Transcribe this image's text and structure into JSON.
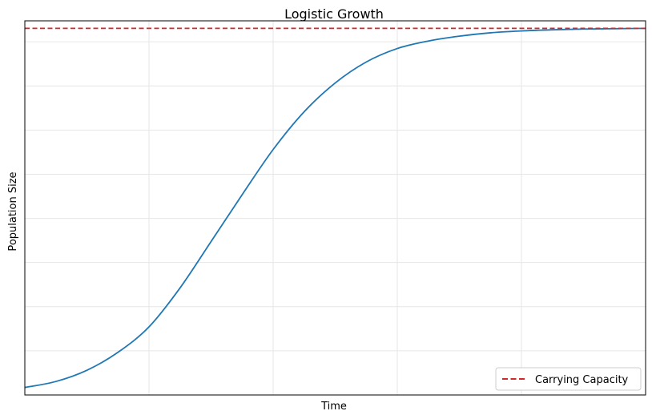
{
  "chart_data": {
    "type": "line",
    "title": "Logistic Growth",
    "xlabel": "Time",
    "ylabel": "Population Size",
    "xlim": [
      0,
      10
    ],
    "ylim": [
      0,
      1.0
    ],
    "grid": true,
    "x_tick_labels_shown": false,
    "y_tick_labels_shown": false,
    "legend_placement": "lower-right",
    "series": [
      {
        "color": "#1f77b4",
        "style": "solid",
        "x": [
          0,
          0.5,
          1,
          1.5,
          2,
          2.5,
          3,
          3.5,
          4,
          4.5,
          5,
          5.5,
          6,
          6.5,
          7,
          7.5,
          8,
          8.5,
          9,
          9.5,
          10
        ],
        "y": [
          0.02,
          0.036,
          0.066,
          0.114,
          0.182,
          0.286,
          0.41,
          0.535,
          0.656,
          0.757,
          0.834,
          0.89,
          0.926,
          0.946,
          0.959,
          0.968,
          0.973,
          0.976,
          0.978,
          0.979,
          0.98
        ]
      }
    ],
    "reference_lines": [
      {
        "name": "Carrying Capacity",
        "type": "horizontal",
        "y": 0.98,
        "color": "#d62728",
        "style": "dashed"
      }
    ]
  }
}
